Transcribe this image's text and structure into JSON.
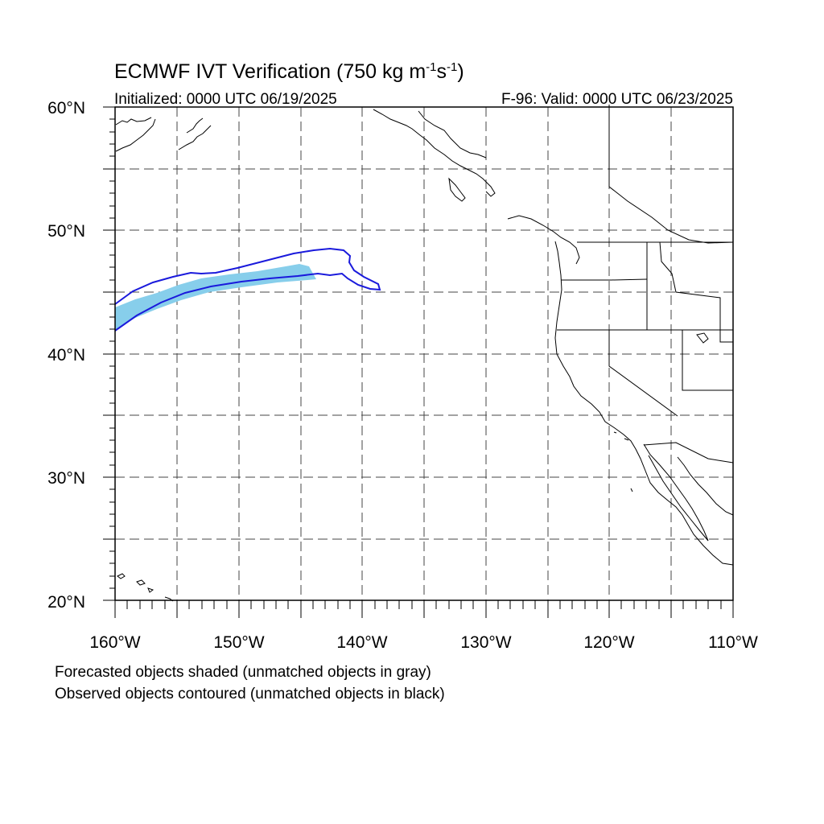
{
  "title": {
    "main": "ECMWF IVT Verification (750 kg m",
    "exp1": "-1",
    "mid": "s",
    "exp2": "-1",
    "close": ")"
  },
  "subtitle_left": "Initialized: 0000 UTC 06/19/2025",
  "subtitle_right": "F-96: Valid: 0000 UTC 06/23/2025",
  "lat_labels": [
    "60°N",
    "50°N",
    "40°N",
    "30°N",
    "20°N"
  ],
  "lon_labels": [
    "160°W",
    "150°W",
    "140°W",
    "130°W",
    "120°W",
    "110°W"
  ],
  "footnotes": [
    "Forecasted objects shaded (unmatched objects in gray)",
    "Observed objects contoured (unmatched objects in black)"
  ],
  "map_extent": {
    "lon_min": -160,
    "lon_max": -110,
    "lat_min": 20,
    "lat_max": 60
  },
  "colors": {
    "forecast_fill": "#87ceeb",
    "observed_contour": "#1a1adc",
    "coastline": "#000000",
    "grid": "#444444"
  }
}
